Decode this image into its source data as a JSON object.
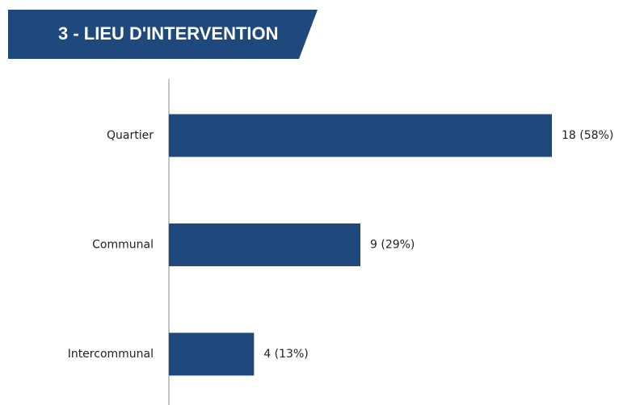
{
  "chart_data": {
    "type": "hbar",
    "title": "3 - LIEU D'INTERVENTION",
    "categories": [
      "Quartier",
      "Communal",
      "Intercommunal"
    ],
    "values": [
      18,
      9,
      4
    ],
    "value_labels": [
      "18 (58%)",
      "9 (29%)",
      "4 (13%)"
    ],
    "color": "#1f487c"
  }
}
